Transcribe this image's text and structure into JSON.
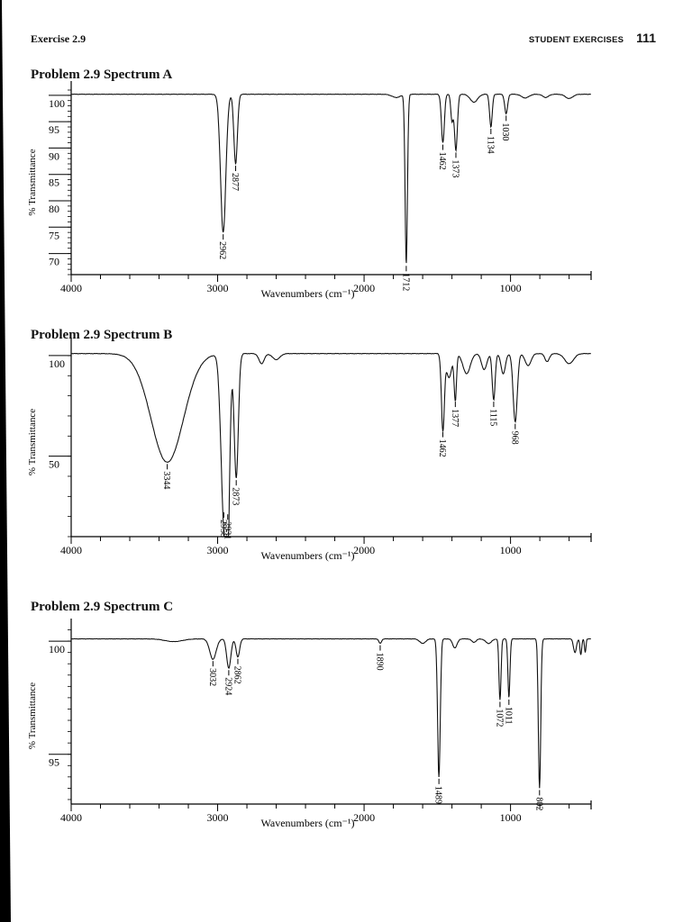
{
  "header": {
    "exercise": "Exercise 2.9",
    "section": "STUDENT EXERCISES",
    "page_number": "111"
  },
  "chart_data": [
    {
      "type": "line",
      "title": "Problem 2.9 Spectrum A",
      "xlabel": "Wavenumbers (cm⁻¹)",
      "ylabel": "% Transmittance",
      "xlim": [
        4000,
        450
      ],
      "ylim": [
        66,
        101
      ],
      "x_ticks": [
        4000,
        3000,
        2000,
        1000
      ],
      "y_ticks": [
        100,
        95,
        90,
        85,
        80,
        75,
        70
      ],
      "peaks": [
        {
          "wavenumber": 2962,
          "transmittance": 74
        },
        {
          "wavenumber": 2877,
          "transmittance": 87
        },
        {
          "wavenumber": 1712,
          "transmittance": 68
        },
        {
          "wavenumber": 1462,
          "transmittance": 91
        },
        {
          "wavenumber": 1373,
          "transmittance": 89.5
        },
        {
          "wavenumber": 1134,
          "transmittance": 94
        },
        {
          "wavenumber": 1030,
          "transmittance": 96.5
        }
      ]
    },
    {
      "type": "line",
      "title": "Problem 2.9 Spectrum B",
      "xlabel": "Wavenumbers (cm⁻¹)",
      "ylabel": "% Transmittance",
      "xlim": [
        4000,
        450
      ],
      "ylim": [
        10,
        104
      ],
      "x_ticks": [
        4000,
        3000,
        2000,
        1000
      ],
      "y_ticks": [
        100,
        50
      ],
      "peaks": [
        {
          "wavenumber": 3344,
          "transmittance": 47
        },
        {
          "wavenumber": 2958,
          "transmittance": 23
        },
        {
          "wavenumber": 2931,
          "transmittance": 22
        },
        {
          "wavenumber": 2873,
          "transmittance": 39
        },
        {
          "wavenumber": 1462,
          "transmittance": 63
        },
        {
          "wavenumber": 1377,
          "transmittance": 78
        },
        {
          "wavenumber": 1115,
          "transmittance": 78
        },
        {
          "wavenumber": 968,
          "transmittance": 67
        }
      ]
    },
    {
      "type": "line",
      "title": "Problem 2.9 Spectrum C",
      "xlabel": "Wavenumbers (cm⁻¹)",
      "ylabel": "% Transmittance",
      "xlim": [
        4000,
        450
      ],
      "ylim": [
        92.8,
        100.6
      ],
      "x_ticks": [
        4000,
        3000,
        2000,
        1000
      ],
      "y_ticks": [
        100,
        95
      ],
      "peaks": [
        {
          "wavenumber": 3032,
          "transmittance": 99.2
        },
        {
          "wavenumber": 2924,
          "transmittance": 98.8
        },
        {
          "wavenumber": 2862,
          "transmittance": 99.3
        },
        {
          "wavenumber": 1890,
          "transmittance": 99.9
        },
        {
          "wavenumber": 1489,
          "transmittance": 94.0
        },
        {
          "wavenumber": 1072,
          "transmittance": 97.4
        },
        {
          "wavenumber": 1011,
          "transmittance": 97.5
        },
        {
          "wavenumber": 802,
          "transmittance": 93.5
        }
      ]
    }
  ]
}
